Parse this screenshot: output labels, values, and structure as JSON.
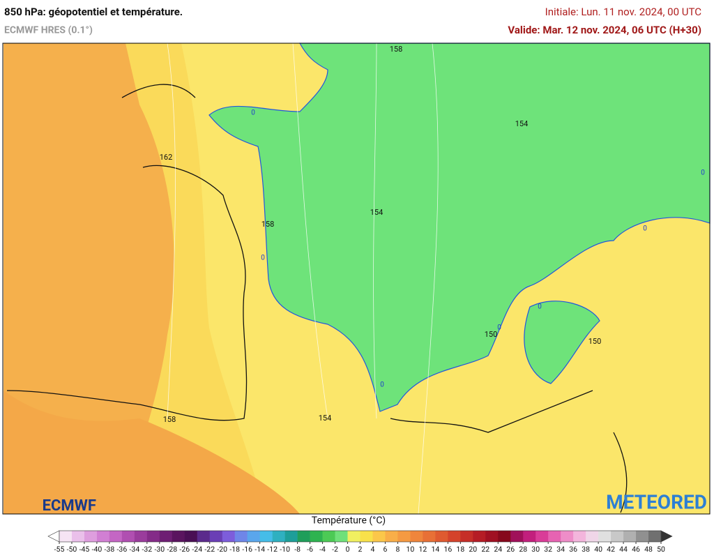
{
  "header": {
    "title": "850 hPa: géopotentiel et température.",
    "model": "ECMWF HRES (0.1°)",
    "initial": "Initiale: Lun. 11 nov. 2024, 00 UTC",
    "valid": "Valide: Mar. 12 nov. 2024, 06 UTC (H+30)"
  },
  "map": {
    "contour_labels": [
      "158",
      "154",
      "162",
      "154",
      "158",
      "150",
      "150",
      "158",
      "154"
    ],
    "isotherm_labels": [
      "0",
      "0",
      "0",
      "0",
      "0",
      "0",
      "0"
    ]
  },
  "logos": {
    "left": "ECMWF",
    "right": "METEORED"
  },
  "legend": {
    "title": "Température (°C)",
    "ticks": [
      -55,
      -50,
      -45,
      -40,
      -38,
      -36,
      -34,
      -32,
      -30,
      -28,
      -26,
      -24,
      -22,
      -20,
      -18,
      -16,
      -14,
      -12,
      -10,
      -8,
      -6,
      -4,
      -2,
      0,
      2,
      4,
      6,
      8,
      10,
      12,
      14,
      16,
      18,
      20,
      22,
      24,
      26,
      28,
      30,
      32,
      34,
      36,
      38,
      40,
      42,
      44,
      46,
      48,
      50
    ],
    "colors": [
      "#f6e4f4",
      "#eac0ea",
      "#de9ede",
      "#d17fd3",
      "#c466c4",
      "#b04fb1",
      "#9a3c9c",
      "#842b88",
      "#6e1e73",
      "#5a145f",
      "#4a0f55",
      "#5b2a8c",
      "#6a3fb5",
      "#7d5ddb",
      "#6f86e8",
      "#5aa6ec",
      "#45bde8",
      "#2fb0c0",
      "#1d9e99",
      "#1f9e5a",
      "#2eb350",
      "#4cca55",
      "#6fe07a",
      "#f0f060",
      "#f8e14a",
      "#fbc74a",
      "#f9ae48",
      "#f59a42",
      "#ef853c",
      "#e87036",
      "#df5a30",
      "#d4432b",
      "#c62e28",
      "#b51c25",
      "#a01022",
      "#86081c",
      "#a0105a",
      "#c21f7d",
      "#d93c98",
      "#e663b2",
      "#ee8dc8",
      "#f3b5dc",
      "#f0d6e8",
      "#e0e0e0",
      "#c8c8c8",
      "#b0b0b0",
      "#909090",
      "#707070"
    ]
  }
}
